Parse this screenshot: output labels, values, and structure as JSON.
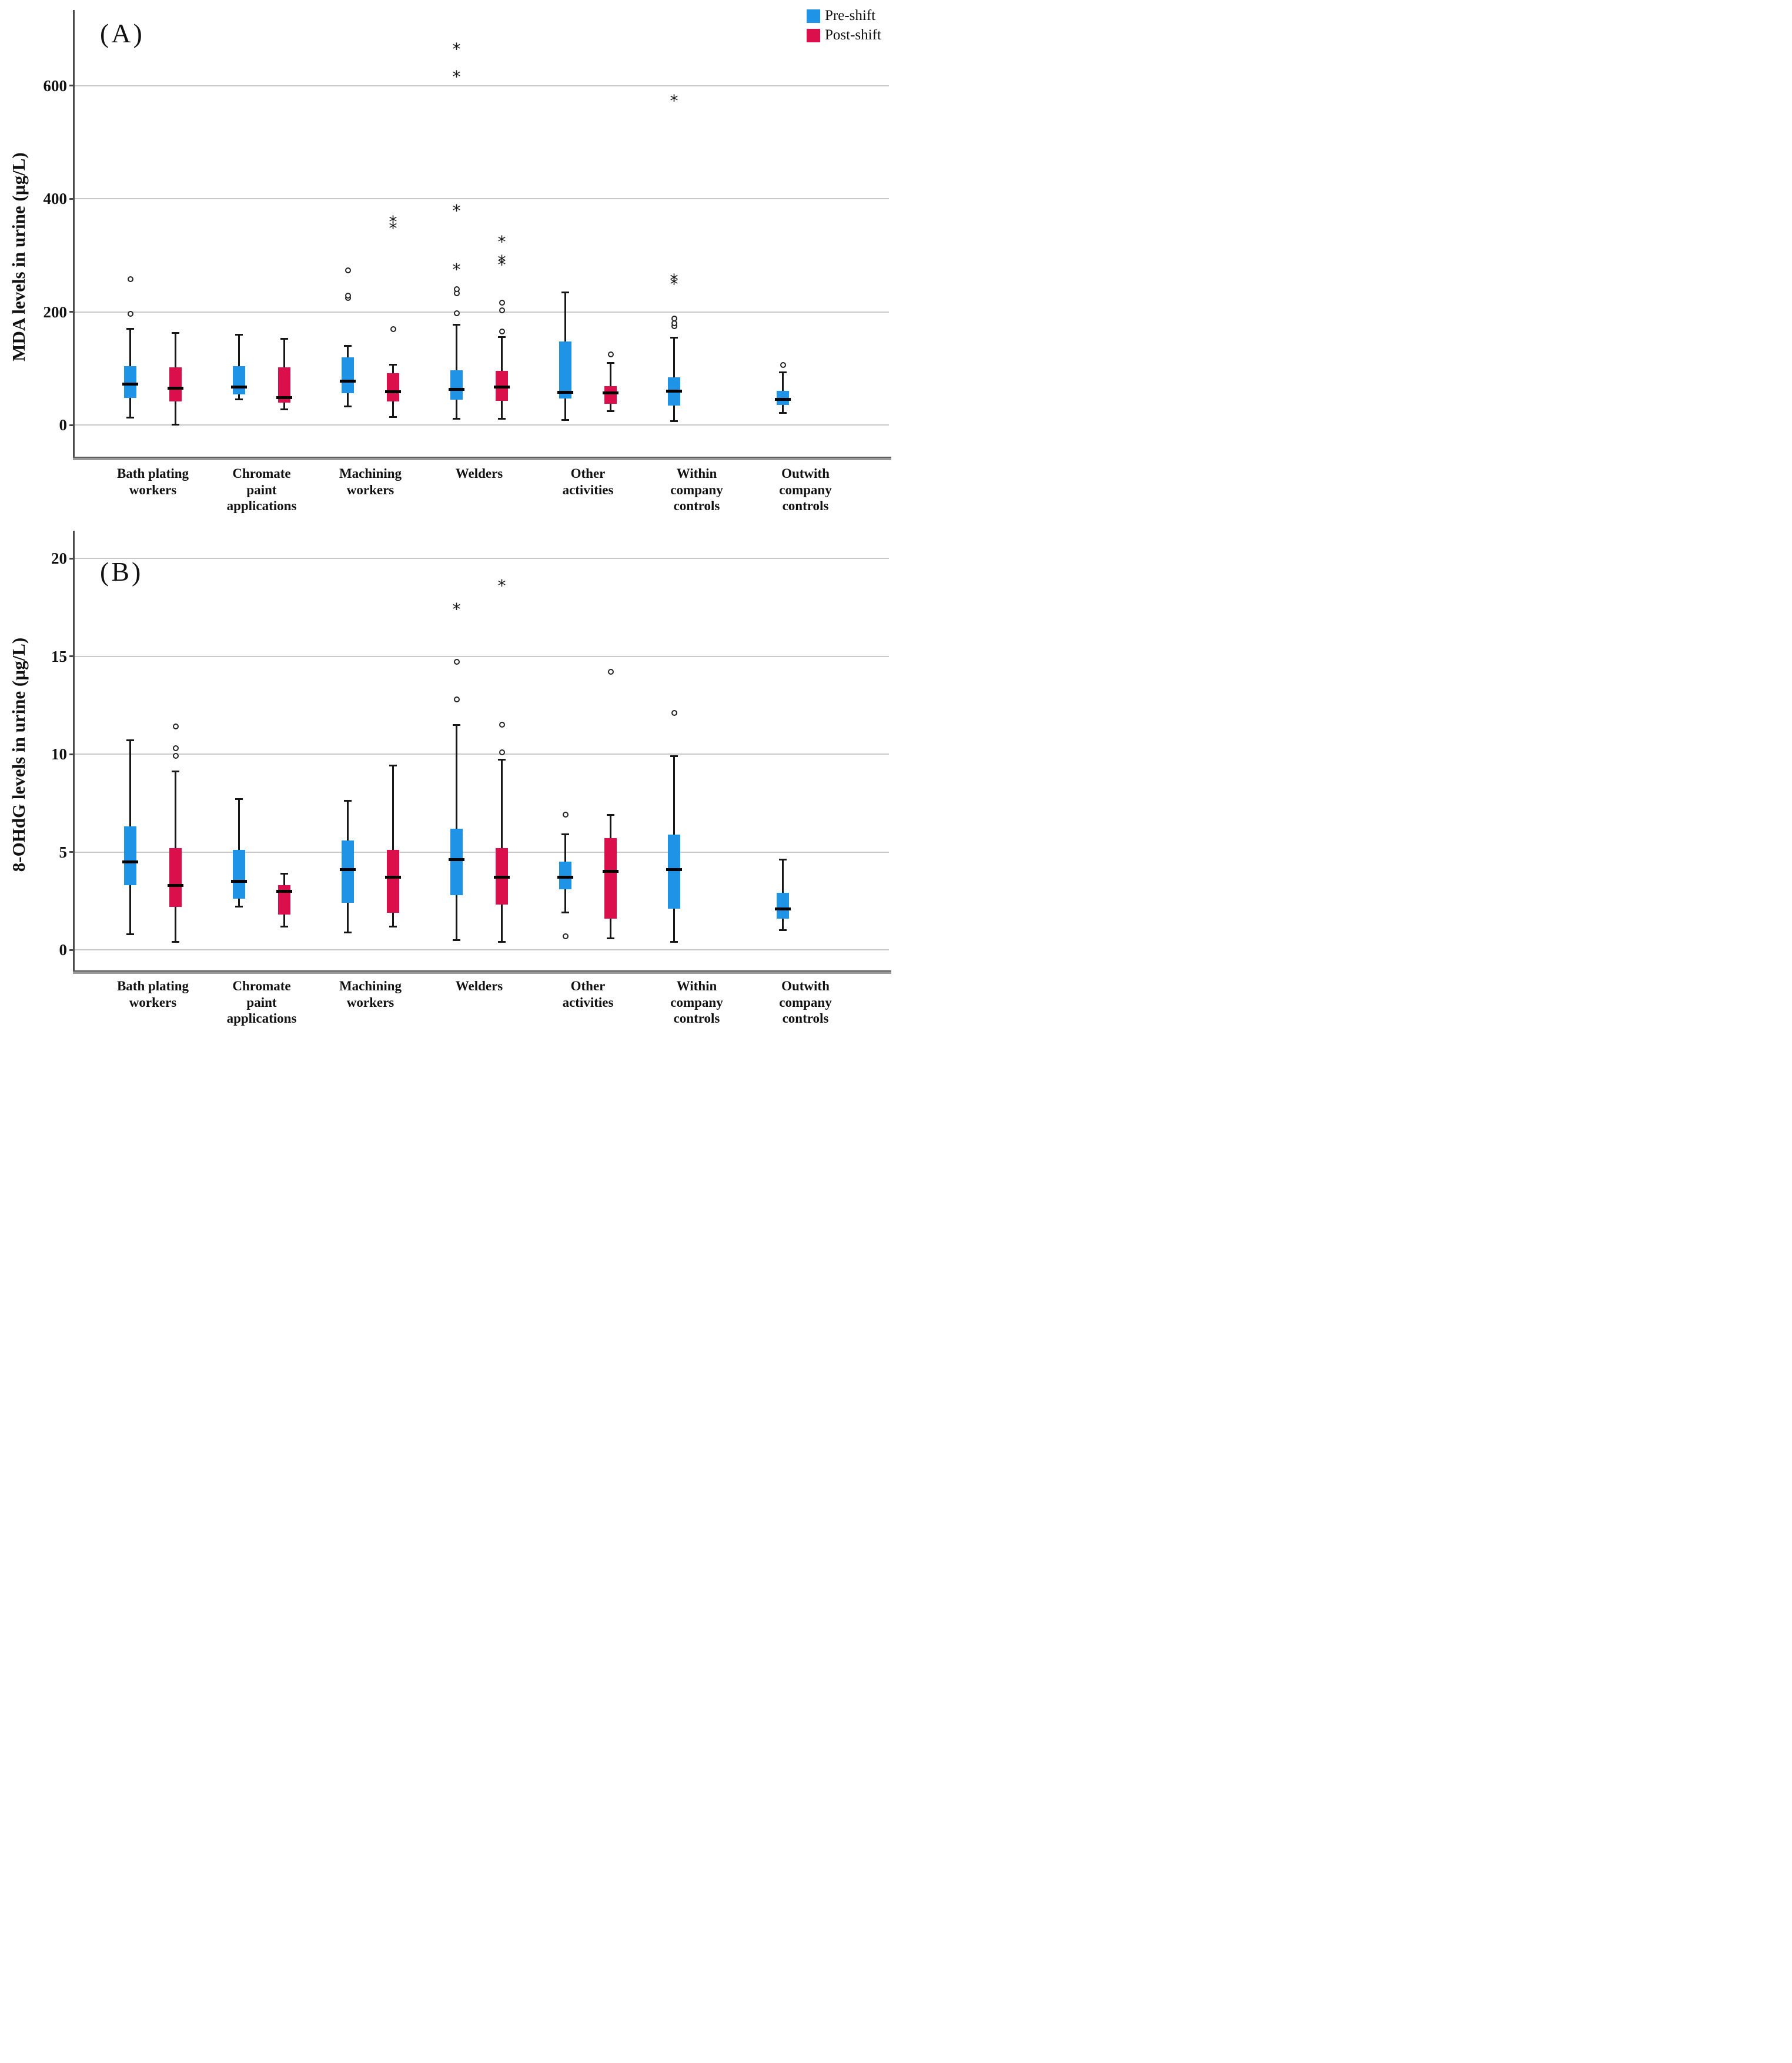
{
  "legend": {
    "items": [
      {
        "label": "Pre-shift",
        "color": "#1F93E6"
      },
      {
        "label": "Post-shift",
        "color": "#DA0F4C"
      }
    ]
  },
  "chart_data": [
    {
      "type": "boxplot",
      "panel_label": "(A)",
      "ylabel": "MDA levels in urine (µg/L)",
      "ylim": [
        -56,
        732
      ],
      "yticks": [
        0,
        200,
        400,
        600
      ],
      "grid": true,
      "legend_position": "top-right",
      "categories": [
        "Bath plating\nworkers",
        "Chromate\npaint\napplications",
        "Machining\nworkers",
        "Welders",
        "Other\nactivities",
        "Within\ncompany\ncontrols",
        "Outwith\ncompany\ncontrols"
      ],
      "series": [
        {
          "name": "Pre-shift",
          "color": "#1F93E6",
          "boxes": [
            {
              "whislo": 13,
              "q1": 48,
              "med": 72,
              "q3": 104,
              "whishi": 170,
              "circles": [
                196,
                258
              ],
              "stars": []
            },
            {
              "whislo": 45,
              "q1": 54,
              "med": 67,
              "q3": 104,
              "whishi": 160,
              "circles": [],
              "stars": []
            },
            {
              "whislo": 33,
              "q1": 56,
              "med": 77,
              "q3": 119,
              "whishi": 140,
              "circles": [
                224,
                229,
                273
              ],
              "stars": []
            },
            {
              "whislo": 11,
              "q1": 45,
              "med": 63,
              "q3": 97,
              "whishi": 177,
              "circles": [
                197,
                233,
                240
              ],
              "stars": [
                282,
                385,
                622,
                671
              ]
            },
            {
              "whislo": 9,
              "q1": 47,
              "med": 58,
              "q3": 148,
              "whishi": 234,
              "circles": [],
              "stars": []
            },
            {
              "whislo": 7,
              "q1": 34,
              "med": 60,
              "q3": 84,
              "whishi": 154,
              "circles": [
                175,
                180,
                188
              ],
              "stars": [
                256,
                263,
                580
              ]
            },
            {
              "whislo": 21,
              "q1": 35,
              "med": 45,
              "q3": 60,
              "whishi": 93,
              "circles": [
                106
              ],
              "stars": []
            }
          ]
        },
        {
          "name": "Post-shift",
          "color": "#DA0F4C",
          "boxes": [
            {
              "whislo": 1,
              "q1": 42,
              "med": 65,
              "q3": 102,
              "whishi": 163,
              "circles": [],
              "stars": []
            },
            {
              "whislo": 28,
              "q1": 39,
              "med": 48,
              "q3": 102,
              "whishi": 152,
              "circles": [],
              "stars": []
            },
            {
              "whislo": 14,
              "q1": 42,
              "med": 59,
              "q3": 91,
              "whishi": 106,
              "circles": [
                169
              ],
              "stars": [
                354,
                366
              ]
            },
            {
              "whislo": 11,
              "q1": 43,
              "med": 67,
              "q3": 96,
              "whishi": 155,
              "circles": [
                165,
                203,
                216
              ],
              "stars": [
                290,
                296,
                330
              ]
            },
            {
              "whislo": 24,
              "q1": 37,
              "med": 57,
              "q3": 69,
              "whishi": 110,
              "circles": [
                125
              ],
              "stars": []
            },
            null,
            null
          ]
        }
      ]
    },
    {
      "type": "boxplot",
      "panel_label": "(B)",
      "ylabel": "8-OHdG levels in urine (µg/L)",
      "ylim": [
        -1.1,
        21.4
      ],
      "yticks": [
        0,
        5,
        10,
        15,
        20
      ],
      "grid": true,
      "legend_position": "none",
      "categories": [
        "Bath plating\nworkers",
        "Chromate\npaint\napplications",
        "Machining\nworkers",
        "Welders",
        "Other\nactivities",
        "Within\ncompany\ncontrols",
        "Outwith\ncompany\ncontrols"
      ],
      "series": [
        {
          "name": "Pre-shift",
          "color": "#1F93E6",
          "boxes": [
            {
              "whislo": 0.8,
              "q1": 3.3,
              "med": 4.5,
              "q3": 6.3,
              "whishi": 10.7,
              "circles": [],
              "stars": []
            },
            {
              "whislo": 2.2,
              "q1": 2.6,
              "med": 3.5,
              "q3": 5.1,
              "whishi": 7.7,
              "circles": [],
              "stars": []
            },
            {
              "whislo": 0.9,
              "q1": 2.4,
              "med": 4.1,
              "q3": 5.6,
              "whishi": 7.6,
              "circles": [],
              "stars": []
            },
            {
              "whislo": 0.5,
              "q1": 2.8,
              "med": 4.6,
              "q3": 6.2,
              "whishi": 11.5,
              "circles": [
                12.8,
                14.7
              ],
              "stars": [
                17.6
              ]
            },
            {
              "whislo": 1.9,
              "q1": 3.1,
              "med": 3.7,
              "q3": 4.5,
              "whishi": 5.9,
              "circles": [
                0.7,
                6.9
              ],
              "stars": []
            },
            {
              "whislo": 0.4,
              "q1": 2.1,
              "med": 4.1,
              "q3": 5.9,
              "whishi": 9.9,
              "circles": [
                12.1
              ],
              "stars": []
            },
            {
              "whislo": 1.0,
              "q1": 1.6,
              "med": 2.1,
              "q3": 2.9,
              "whishi": 4.6,
              "circles": [],
              "stars": []
            }
          ]
        },
        {
          "name": "Post-shift",
          "color": "#DA0F4C",
          "boxes": [
            {
              "whislo": 0.4,
              "q1": 2.2,
              "med": 3.3,
              "q3": 5.2,
              "whishi": 9.1,
              "circles": [
                9.9,
                10.3,
                11.4
              ],
              "stars": []
            },
            {
              "whislo": 1.2,
              "q1": 1.8,
              "med": 3.0,
              "q3": 3.3,
              "whishi": 3.9,
              "circles": [],
              "stars": []
            },
            {
              "whislo": 1.2,
              "q1": 1.9,
              "med": 3.7,
              "q3": 5.1,
              "whishi": 9.4,
              "circles": [],
              "stars": []
            },
            {
              "whislo": 0.4,
              "q1": 2.3,
              "med": 3.7,
              "q3": 5.2,
              "whishi": 9.7,
              "circles": [
                10.1,
                11.5
              ],
              "stars": [
                18.8
              ]
            },
            {
              "whislo": 0.6,
              "q1": 1.6,
              "med": 4.0,
              "q3": 5.7,
              "whishi": 6.9,
              "circles": [
                14.2
              ],
              "stars": []
            },
            null,
            null
          ]
        }
      ]
    }
  ]
}
